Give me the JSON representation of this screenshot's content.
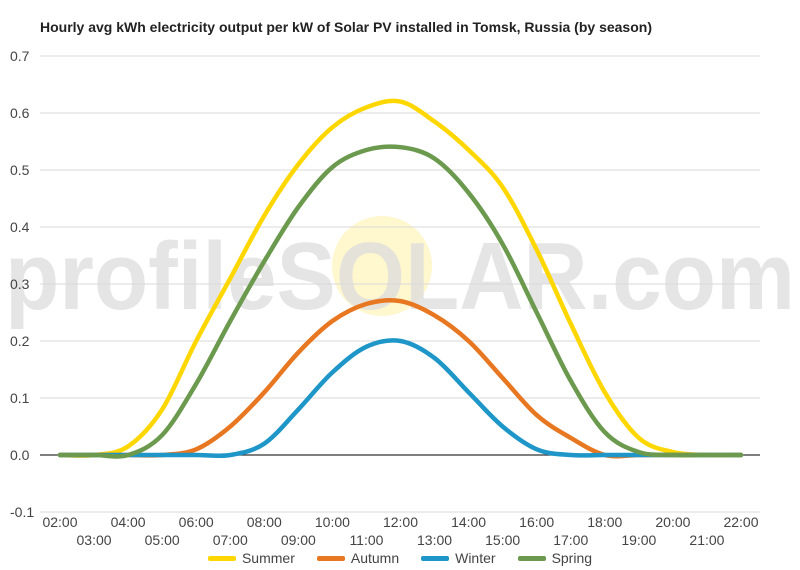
{
  "chart_data": {
    "type": "line",
    "title": "Hourly avg kWh electricity output per kW of Solar PV installed in Tomsk, Russia (by season)",
    "xlabel": "",
    "ylabel": "",
    "ylim": [
      -0.1,
      0.7
    ],
    "y_ticks": [
      "-0.1",
      "0.0",
      "0.1",
      "0.2",
      "0.3",
      "0.4",
      "0.5",
      "0.6",
      "0.7"
    ],
    "x_ticks": [
      "02:00",
      "03:00",
      "04:00",
      "05:00",
      "06:00",
      "07:00",
      "08:00",
      "09:00",
      "10:00",
      "11:00",
      "12:00",
      "13:00",
      "14:00",
      "15:00",
      "16:00",
      "17:00",
      "18:00",
      "19:00",
      "20:00",
      "21:00",
      "22:00"
    ],
    "grid": true,
    "legend_position": "bottom",
    "watermark": "profileSOLAR.com",
    "series": [
      {
        "name": "Summer",
        "color": "#FFD700",
        "values": [
          0.0,
          0.0,
          0.015,
          0.08,
          0.2,
          0.31,
          0.42,
          0.51,
          0.575,
          0.61,
          0.62,
          0.585,
          0.535,
          0.47,
          0.36,
          0.23,
          0.11,
          0.03,
          0.005,
          0.0,
          0.0
        ]
      },
      {
        "name": "Autumn",
        "color": "#E87722",
        "values": [
          0.0,
          0.0,
          0.0,
          0.0,
          0.01,
          0.05,
          0.11,
          0.18,
          0.235,
          0.265,
          0.27,
          0.245,
          0.2,
          0.135,
          0.07,
          0.03,
          0.0,
          0.0,
          0.0,
          0.0,
          0.0
        ]
      },
      {
        "name": "Winter",
        "color": "#1E96C8",
        "values": [
          0.0,
          0.0,
          0.0,
          0.0,
          0.0,
          0.0,
          0.02,
          0.08,
          0.145,
          0.19,
          0.2,
          0.17,
          0.11,
          0.05,
          0.01,
          0.0,
          0.0,
          0.0,
          0.0,
          0.0,
          0.0
        ]
      },
      {
        "name": "Spring",
        "color": "#6B9A4E",
        "values": [
          0.0,
          0.0,
          0.0,
          0.035,
          0.125,
          0.235,
          0.34,
          0.435,
          0.505,
          0.535,
          0.54,
          0.52,
          0.46,
          0.37,
          0.25,
          0.13,
          0.04,
          0.005,
          0.0,
          0.0,
          0.0
        ]
      }
    ]
  }
}
